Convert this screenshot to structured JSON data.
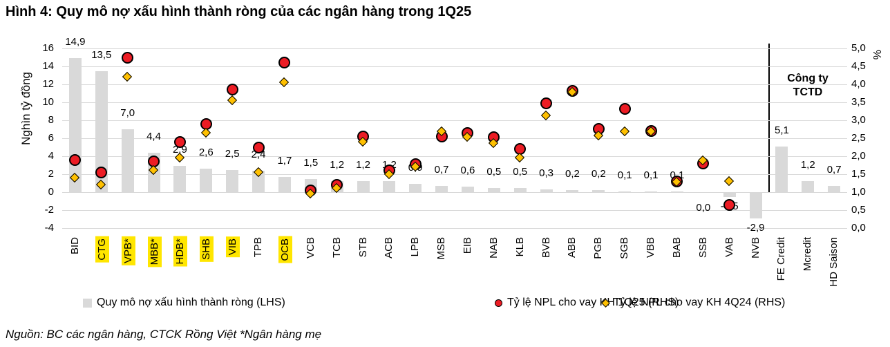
{
  "title": "Hình 4: Quy mô nợ xấu hình thành ròng của các ngân hàng trong 1Q25",
  "source_note": "Nguồn: BC các ngân hàng, CTCK Rồng Việt *Ngân hàng mẹ",
  "chart_data": {
    "type": "combo bar + scatter (dual axis)",
    "left_axis": {
      "title": "Nghìn tỷ đồng",
      "min": -4,
      "max": 16,
      "step": 2,
      "tick_labels": [
        "16",
        "14",
        "12",
        "10",
        "8",
        "6",
        "4",
        "2",
        "0",
        "-2",
        "-4"
      ]
    },
    "right_axis": {
      "title": "%",
      "min": 0,
      "max": 5,
      "step": 0.5,
      "tick_labels": [
        "5,0",
        "4,5",
        "4,0",
        "3,5",
        "3,0",
        "2,5",
        "2,0",
        "1,5",
        "1,0",
        "0,5",
        "0,0"
      ]
    },
    "annotation": {
      "line1": "Công ty",
      "line2": "TCTD"
    },
    "divider_after_index": 26,
    "legend": [
      {
        "label": "Quy mô nợ xấu hình thành ròng (LHS)",
        "marker": "gray-square",
        "color": "#D9D9D9"
      },
      {
        "label": "Tỷ lệ NPL cho vay KH 1Q25 (RHS)",
        "marker": "red-circle",
        "color": "#EC1C24"
      },
      {
        "label": "Tỷ lệ NPL cho vay KH 4Q24 (RHS)",
        "marker": "yellow-diamond",
        "color": "#FFC000"
      }
    ],
    "categories": [
      {
        "name": "BID",
        "highlight": false,
        "bar": 14.9,
        "bar_label": "14,9",
        "npl_1q25": 1.9,
        "npl_4q24": 1.4
      },
      {
        "name": "CTG",
        "highlight": true,
        "bar": 13.5,
        "bar_label": "13,5",
        "npl_1q25": 1.55,
        "npl_4q24": 1.2
      },
      {
        "name": "VPB*",
        "highlight": true,
        "bar": 7.0,
        "bar_label": "7,0",
        "npl_1q25": 4.75,
        "npl_4q24": 4.2
      },
      {
        "name": "MBB*",
        "highlight": true,
        "bar": 4.4,
        "bar_label": "4,4",
        "npl_1q25": 1.85,
        "npl_4q24": 1.6
      },
      {
        "name": "HDB*",
        "highlight": true,
        "bar": 2.9,
        "bar_label": "2,9",
        "npl_1q25": 2.4,
        "npl_4q24": 1.95
      },
      {
        "name": "SHB",
        "highlight": true,
        "bar": 2.6,
        "bar_label": "2,6",
        "npl_1q25": 2.9,
        "npl_4q24": 2.65
      },
      {
        "name": "VIB",
        "highlight": true,
        "bar": 2.5,
        "bar_label": "2,5",
        "npl_1q25": 3.85,
        "npl_4q24": 3.55
      },
      {
        "name": "TPB",
        "highlight": false,
        "bar": 2.4,
        "bar_label": "2,4",
        "npl_1q25": 2.25,
        "npl_4q24": 1.55
      },
      {
        "name": "OCB",
        "highlight": true,
        "bar": 1.7,
        "bar_label": "1,7",
        "npl_1q25": 4.6,
        "npl_4q24": 4.05
      },
      {
        "name": "VCB",
        "highlight": false,
        "bar": 1.5,
        "bar_label": "1,5",
        "npl_1q25": 1.05,
        "npl_4q24": 0.95
      },
      {
        "name": "TCB",
        "highlight": false,
        "bar": 1.2,
        "bar_label": "1,2",
        "npl_1q25": 1.2,
        "npl_4q24": 1.1
      },
      {
        "name": "STB",
        "highlight": false,
        "bar": 1.2,
        "bar_label": "1,2",
        "npl_1q25": 2.55,
        "npl_4q24": 2.4
      },
      {
        "name": "ACB",
        "highlight": false,
        "bar": 1.2,
        "bar_label": "1,2",
        "npl_1q25": 1.6,
        "npl_4q24": 1.5
      },
      {
        "name": "LPB",
        "highlight": false,
        "bar": 0.9,
        "bar_label": "0,9",
        "npl_1q25": 1.78,
        "npl_4q24": 1.7
      },
      {
        "name": "MSB",
        "highlight": false,
        "bar": 0.7,
        "bar_label": "0,7",
        "npl_1q25": 2.55,
        "npl_4q24": 2.68
      },
      {
        "name": "EIB",
        "highlight": false,
        "bar": 0.6,
        "bar_label": "0,6",
        "npl_1q25": 2.64,
        "npl_4q24": 2.52
      },
      {
        "name": "NAB",
        "highlight": false,
        "bar": 0.5,
        "bar_label": "0,5",
        "npl_1q25": 2.52,
        "npl_4q24": 2.35
      },
      {
        "name": "KLB",
        "highlight": false,
        "bar": 0.5,
        "bar_label": "0,5",
        "npl_1q25": 2.2,
        "npl_4q24": 1.95
      },
      {
        "name": "BVB",
        "highlight": false,
        "bar": 0.3,
        "bar_label": "0,3",
        "npl_1q25": 3.47,
        "npl_4q24": 3.13
      },
      {
        "name": "ABB",
        "highlight": false,
        "bar": 0.2,
        "bar_label": "0,2",
        "npl_1q25": 3.82,
        "npl_4q24": 3.78
      },
      {
        "name": "PGB",
        "highlight": false,
        "bar": 0.2,
        "bar_label": "0,2",
        "npl_1q25": 2.76,
        "npl_4q24": 2.57
      },
      {
        "name": "SGB",
        "highlight": false,
        "bar": 0.1,
        "bar_label": "0,1",
        "npl_1q25": 3.31,
        "npl_4q24": 2.69
      },
      {
        "name": "VBB",
        "highlight": false,
        "bar": 0.1,
        "bar_label": "0,1",
        "npl_1q25": 2.7,
        "npl_4q24": 2.68
      },
      {
        "name": "BAB",
        "highlight": false,
        "bar": 0.1,
        "bar_label": "0,1",
        "npl_1q25": 1.3,
        "npl_4q24": 1.28
      },
      {
        "name": "SSB",
        "highlight": false,
        "bar": 0.0,
        "bar_label": "0,0",
        "npl_1q25": 1.8,
        "npl_4q24": 1.87,
        "label_below": true
      },
      {
        "name": "VAB",
        "highlight": false,
        "bar": -0.5,
        "bar_label": "-0,5",
        "npl_1q25": 0.65,
        "npl_4q24": 1.3
      },
      {
        "name": "NVB",
        "highlight": false,
        "bar": -2.9,
        "bar_label": "-2,9",
        "npl_1q25": null,
        "npl_4q24": null
      },
      {
        "name": "FE Credit",
        "highlight": false,
        "bar": 5.1,
        "bar_label": "5,1",
        "npl_1q25": null,
        "npl_4q24": null
      },
      {
        "name": "Mcredit",
        "highlight": false,
        "bar": 1.2,
        "bar_label": "1,2",
        "npl_1q25": null,
        "npl_4q24": null
      },
      {
        "name": "HD Saison",
        "highlight": false,
        "bar": 0.7,
        "bar_label": "0,7",
        "npl_1q25": null,
        "npl_4q24": null
      }
    ]
  },
  "colors": {
    "bar": "#D9D9D9",
    "gridline": "#D9D9D9",
    "npl_1q25": "#EC1C24",
    "npl_4q24": "#FFC000",
    "highlight": "#FFE600",
    "divider": "#000000",
    "text": "#000000"
  }
}
